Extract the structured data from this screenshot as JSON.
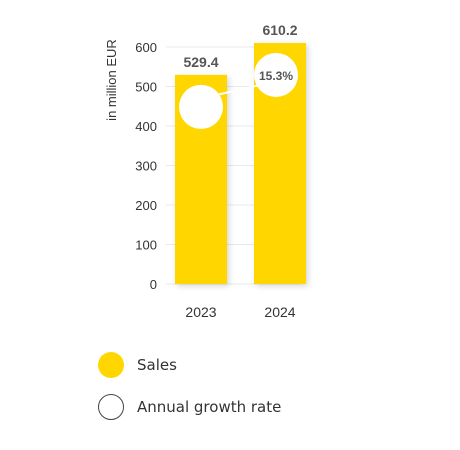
{
  "chart_data": {
    "type": "bar",
    "categories": [
      "2023",
      "2024"
    ],
    "values": [
      529.4,
      610.2
    ],
    "value_labels": [
      "529.4",
      "610.2"
    ],
    "ylabel": "in million EUR",
    "ylim": [
      0,
      600
    ],
    "yticks": [
      0,
      100,
      200,
      300,
      400,
      500,
      600
    ],
    "grid": true,
    "growth_rate": {
      "from": "2023",
      "to": "2024",
      "value": 15.3,
      "label": "15.3%"
    },
    "legend": [
      {
        "name": "Sales",
        "marker": "filled-circle"
      },
      {
        "name": "Annual growth rate",
        "marker": "outlined-circle"
      }
    ]
  },
  "colors": {
    "bar": "#FFD600",
    "grid": "#e9e9e9",
    "text": "#333333",
    "value_label": "#555555",
    "circle_outline": "#444444"
  }
}
